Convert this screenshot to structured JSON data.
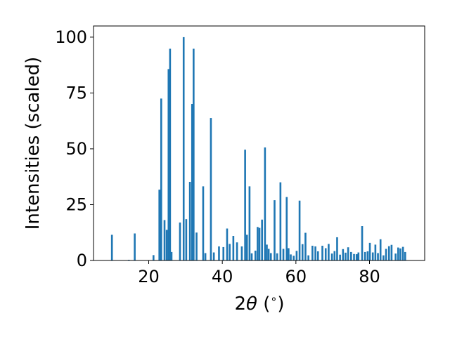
{
  "chart_data": {
    "type": "bar",
    "title": "",
    "xlabel_prefix": "2",
    "xlabel_theta": "θ",
    "xlabel_suffix": " (",
    "xlabel_deg": "∘",
    "xlabel_close": ")",
    "ylabel": "Intensities (scaled)",
    "xlim": [
      5,
      95
    ],
    "ylim": [
      0,
      105
    ],
    "xticks": [
      20,
      40,
      60,
      80
    ],
    "yticks": [
      0,
      25,
      50,
      75,
      100
    ],
    "grid": false,
    "bar_color": "#1f77b4",
    "bar_width": 0.5,
    "x": [
      10.0,
      14.6,
      16.2,
      21.3,
      22.9,
      23.4,
      24.3,
      24.9,
      25.4,
      25.8,
      26.2,
      28.5,
      29.5,
      30.2,
      31.2,
      31.8,
      32.2,
      33.0,
      34.8,
      35.4,
      36.9,
      37.7,
      39.1,
      40.3,
      41.3,
      42.0,
      43.0,
      44.0,
      45.3,
      46.2,
      46.7,
      47.4,
      48.0,
      49.0,
      49.6,
      50.1,
      50.8,
      51.6,
      52.1,
      52.6,
      53.2,
      54.2,
      54.9,
      55.8,
      56.6,
      57.5,
      58.0,
      58.6,
      59.4,
      60.2,
      61.0,
      61.8,
      62.6,
      63.4,
      64.5,
      65.3,
      66.0,
      67.2,
      68.1,
      68.9,
      69.8,
      70.5,
      71.2,
      72.0,
      72.8,
      73.5,
      74.2,
      75.0,
      75.8,
      76.5,
      77.0,
      78.0,
      78.8,
      79.5,
      80.1,
      80.9,
      81.6,
      82.3,
      83.0,
      83.8,
      84.5,
      85.3,
      86.0,
      87.1,
      87.8,
      88.4,
      89.1,
      89.7
    ],
    "values": [
      11.5,
      0.3,
      12.1,
      2.4,
      31.7,
      72.5,
      18.1,
      13.7,
      85.7,
      94.8,
      3.8,
      17.0,
      100.0,
      18.5,
      35.2,
      70.1,
      94.8,
      12.5,
      33.2,
      3.3,
      63.8,
      3.6,
      6.3,
      6.0,
      14.3,
      7.4,
      11.0,
      8.1,
      6.3,
      49.6,
      11.5,
      33.2,
      3.2,
      4.4,
      15.0,
      14.6,
      18.3,
      50.6,
      7.1,
      5.2,
      3.3,
      27.0,
      3.2,
      35.0,
      5.2,
      28.4,
      5.5,
      2.7,
      2.1,
      4.3,
      26.8,
      7.3,
      12.4,
      2.3,
      6.6,
      6.3,
      4.1,
      6.6,
      5.5,
      7.4,
      3.1,
      4.2,
      10.4,
      2.6,
      5.1,
      3.5,
      5.9,
      3.8,
      2.9,
      2.8,
      3.6,
      15.4,
      3.8,
      4.1,
      7.9,
      3.6,
      7.1,
      3.3,
      9.5,
      2.3,
      5.2,
      6.4,
      7.0,
      3.1,
      5.8,
      5.4,
      6.1,
      3.8
    ]
  }
}
